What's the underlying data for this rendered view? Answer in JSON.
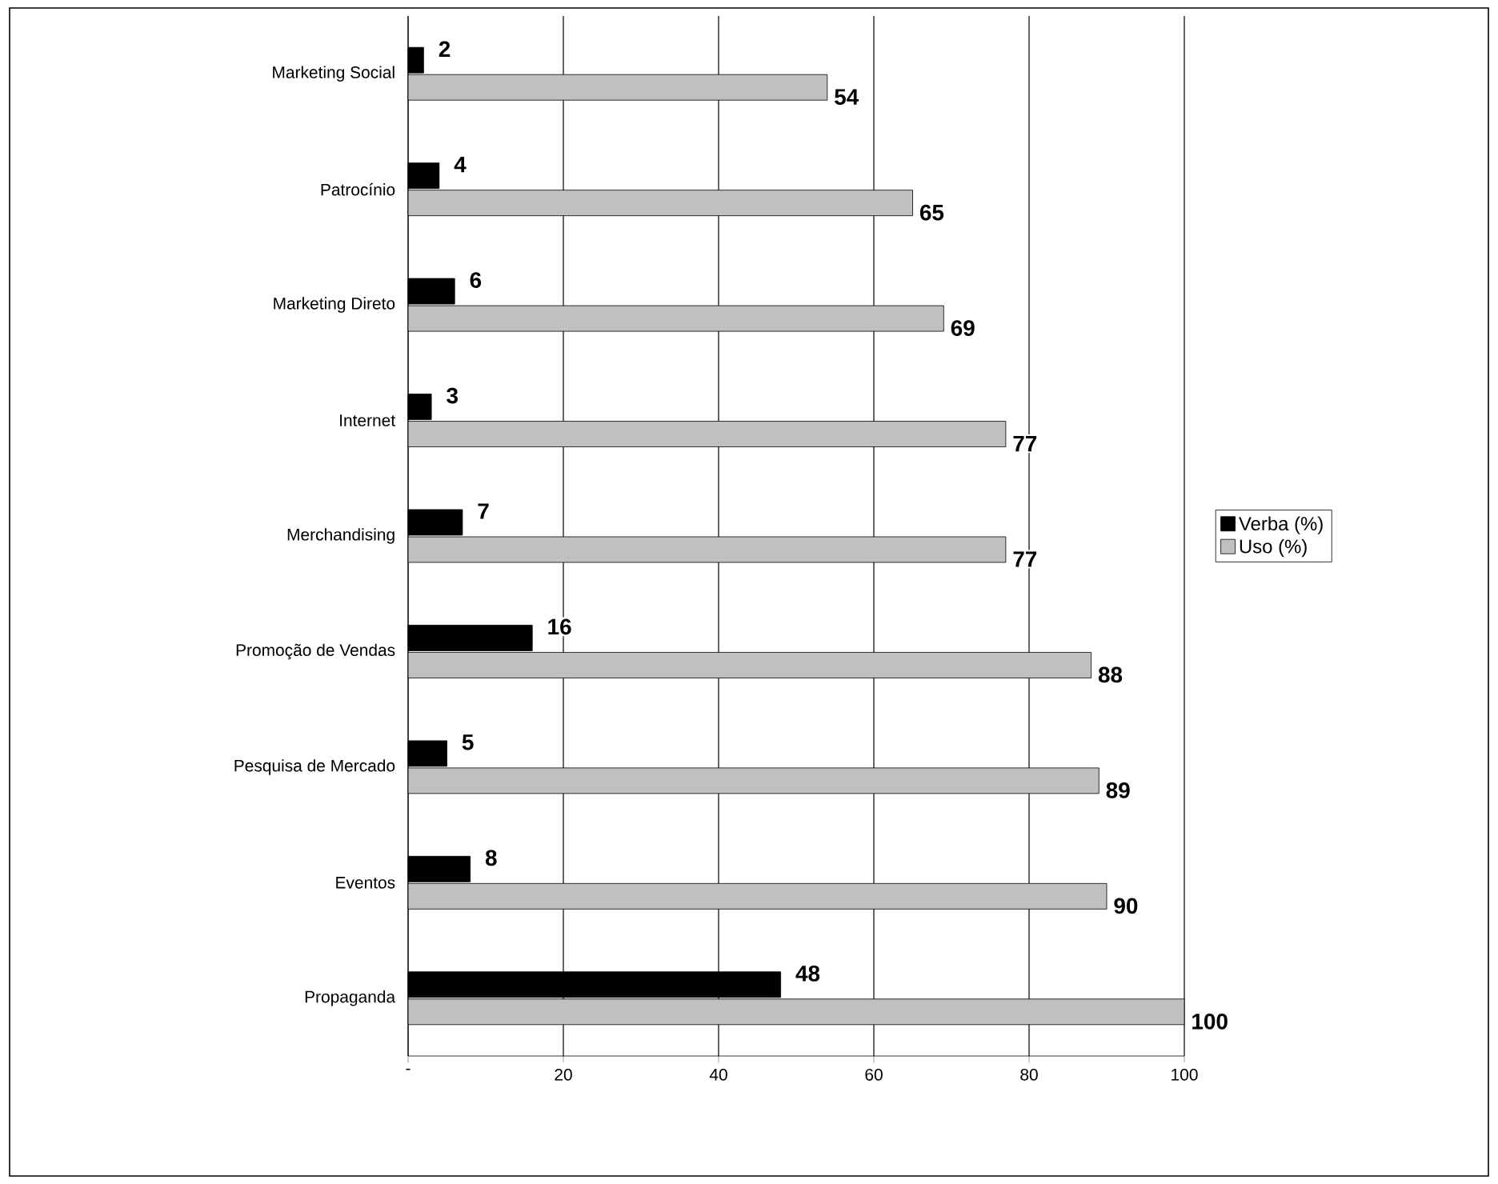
{
  "chart_data": {
    "type": "bar",
    "orientation": "horizontal",
    "categories": [
      "Marketing Social",
      "Patrocínio",
      "Marketing Direto",
      "Internet",
      "Merchandising",
      "Promoção de Vendas",
      "Pesquisa de Mercado",
      "Eventos",
      "Propaganda"
    ],
    "series": [
      {
        "name": "Verba (%)",
        "color": "#000000",
        "values": [
          2,
          4,
          6,
          3,
          7,
          16,
          5,
          8,
          48
        ]
      },
      {
        "name": "Uso (%)",
        "color": "#c0c0c0",
        "values": [
          54,
          65,
          69,
          77,
          77,
          88,
          89,
          90,
          100
        ]
      }
    ],
    "xlim": [
      0,
      100
    ],
    "xticks": [
      {
        "value": 0,
        "label": "-"
      },
      20,
      40,
      60,
      80,
      100
    ],
    "grid": "x",
    "legend": "right",
    "data_labels": true
  }
}
